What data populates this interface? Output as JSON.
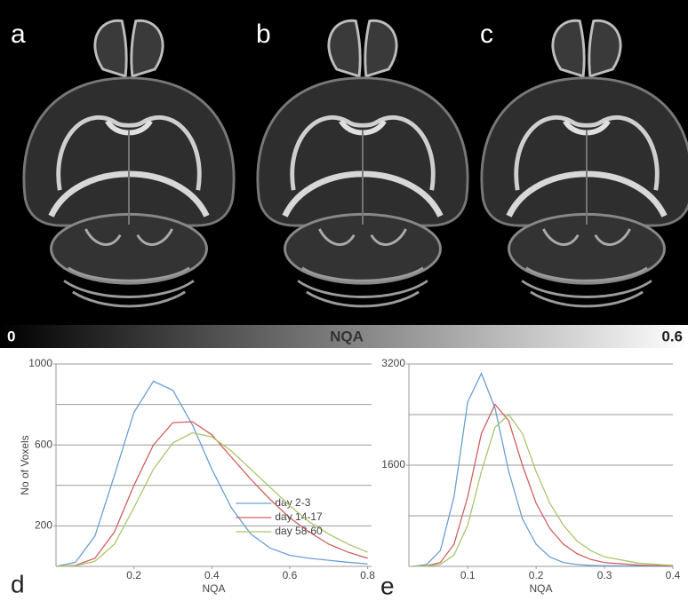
{
  "panels": [
    "a",
    "b",
    "c"
  ],
  "colorbar": {
    "min_label": "0",
    "title": "NQA",
    "max_label": "0.6"
  },
  "chart_panels": [
    "d",
    "e"
  ],
  "chart_data": [
    {
      "type": "line",
      "xlabel": "NQA",
      "ylabel": "No of Voxels",
      "x": [
        0,
        0.05,
        0.1,
        0.15,
        0.2,
        0.25,
        0.3,
        0.35,
        0.4,
        0.45,
        0.5,
        0.55,
        0.6,
        0.65,
        0.7,
        0.75,
        0.8
      ],
      "series": [
        {
          "name": "day 2-3",
          "color": "#6a9fd4",
          "values": [
            0,
            20,
            150,
            450,
            760,
            915,
            870,
            700,
            480,
            290,
            160,
            90,
            55,
            40,
            30,
            20,
            12
          ]
        },
        {
          "name": "day 14-17",
          "color": "#d0605e",
          "values": [
            0,
            5,
            40,
            170,
            400,
            600,
            710,
            715,
            650,
            540,
            430,
            330,
            240,
            170,
            110,
            70,
            40
          ]
        },
        {
          "name": "day 58-60",
          "color": "#a9c66c",
          "values": [
            0,
            3,
            25,
            110,
            290,
            480,
            610,
            660,
            640,
            570,
            480,
            390,
            300,
            220,
            160,
            110,
            70
          ]
        }
      ],
      "xlim": [
        0,
        0.81
      ],
      "ylim": [
        0,
        1000
      ],
      "xticks": [
        0.2,
        0.4,
        0.6,
        0.8
      ],
      "yticks": [
        200,
        600,
        1000
      ],
      "ygrid": [
        200,
        400,
        600,
        800,
        1000
      ],
      "legend": "center-right"
    },
    {
      "type": "line",
      "xlabel": "NQA",
      "x": [
        0.02,
        0.04,
        0.06,
        0.08,
        0.1,
        0.12,
        0.14,
        0.16,
        0.18,
        0.2,
        0.22,
        0.24,
        0.26,
        0.28,
        0.3,
        0.35,
        0.4
      ],
      "series": [
        {
          "color": "#6a9fd4",
          "values": [
            0,
            30,
            250,
            1100,
            2600,
            3050,
            2500,
            1500,
            750,
            350,
            150,
            60,
            30,
            15,
            10,
            5,
            0
          ]
        },
        {
          "color": "#d0605e",
          "values": [
            0,
            10,
            60,
            350,
            1100,
            2100,
            2560,
            2300,
            1600,
            1000,
            600,
            350,
            200,
            110,
            60,
            20,
            5
          ]
        },
        {
          "color": "#a9c66c",
          "values": [
            0,
            5,
            30,
            180,
            650,
            1500,
            2200,
            2400,
            2100,
            1500,
            1000,
            650,
            400,
            250,
            150,
            50,
            15
          ]
        }
      ],
      "xlim": [
        0.014,
        0.4
      ],
      "ylim": [
        0,
        3200
      ],
      "xticks": [
        0.1,
        0.2,
        0.3,
        0.4
      ],
      "yticks": [
        1600,
        3200
      ],
      "ygrid": [
        800,
        1600,
        2400,
        3200
      ]
    }
  ]
}
